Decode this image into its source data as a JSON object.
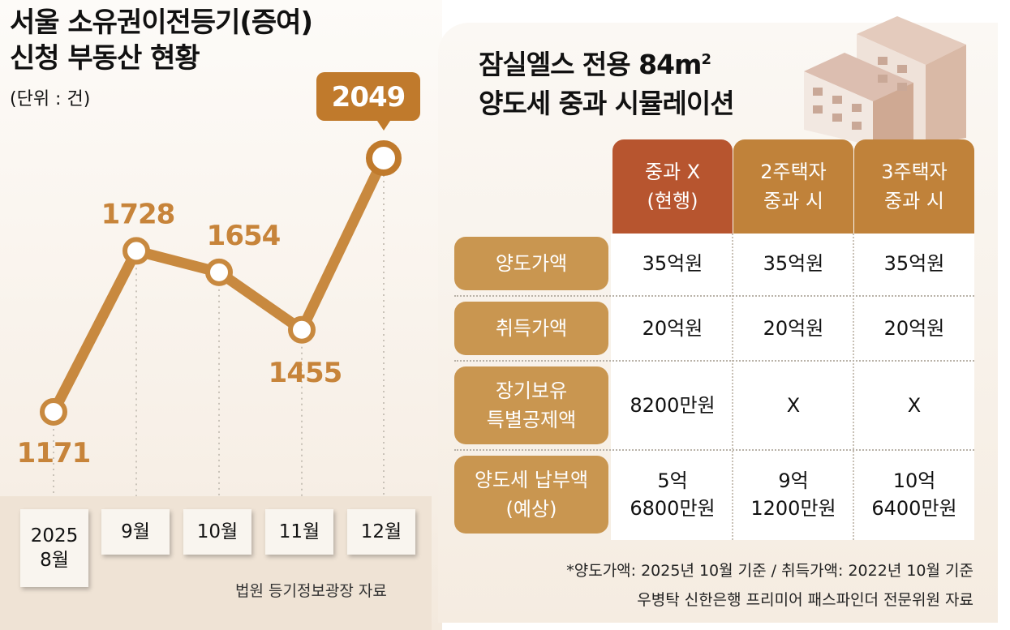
{
  "left": {
    "title_line1": "서울 소유권이전등기(증여)",
    "title_line2": "신청 부동산 현황",
    "unit": "(단위 : 건)",
    "source": "법원 등기정보광장 자료",
    "x_labels": [
      "2025\n8월",
      "9월",
      "10월",
      "11월",
      "12월"
    ]
  },
  "chart_data": {
    "type": "line",
    "title": "서울 소유권이전등기(증여) 신청 부동산 현황",
    "ylabel": "(단위 : 건)",
    "categories": [
      "2025 8월",
      "9월",
      "10월",
      "11월",
      "12월"
    ],
    "values": [
      1171,
      1728,
      1654,
      1455,
      2049
    ],
    "highlight_index": 4,
    "colors": {
      "line": "#c8893f",
      "highlight": "#c07a2c",
      "label": "#c7843a"
    }
  },
  "right": {
    "title_line1": "잠실엘스 전용 84m",
    "title_sup": "2",
    "title_line2": "양도세 중과 시뮬레이션",
    "columns": [
      {
        "label1": "중과 X",
        "label2": "(현행)",
        "color": "#b7552f"
      },
      {
        "label1": "2주택자",
        "label2": "중과 시",
        "color": "#c0823a"
      },
      {
        "label1": "3주택자",
        "label2": "중과 시",
        "color": "#c0823a"
      }
    ],
    "rows": [
      {
        "label1": "양도가액",
        "label2": "",
        "values": [
          "35억원",
          "35억원",
          "35억원"
        ]
      },
      {
        "label1": "취득가액",
        "label2": "",
        "values": [
          "20억원",
          "20억원",
          "20억원"
        ]
      },
      {
        "label1": "장기보유",
        "label2": "특별공제액",
        "values": [
          "8200만원",
          "X",
          "X"
        ]
      },
      {
        "label1": "양도세 납부액",
        "label2": "(예상)",
        "values": [
          "5억\n6800만원",
          "9억\n1200만원",
          "10억\n6400만원"
        ]
      }
    ],
    "footnote1": "*양도가액: 2025년 10월 기준 / 취득가액: 2022년 10월 기준",
    "footnote2": "우병탁 신한은행 프리미어 패스파인더 전문위원 자료"
  }
}
